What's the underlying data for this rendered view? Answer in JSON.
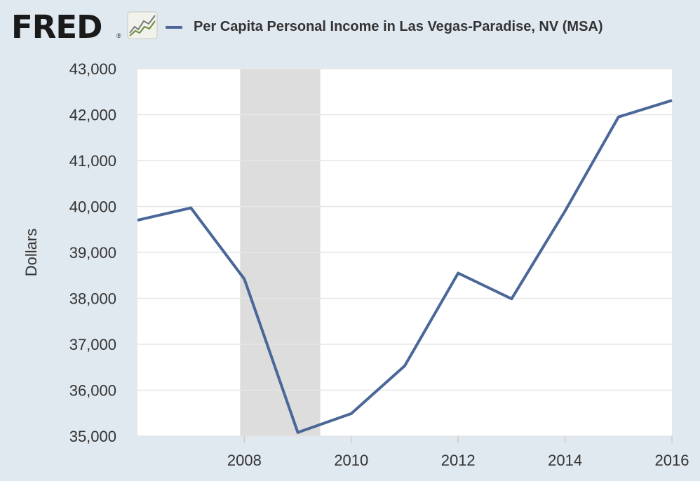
{
  "header": {
    "logo_text": "FRED",
    "logo_registered": "®",
    "logo_icon": "fred-chart-logo-icon",
    "legend_label": "Per Capita Personal Income in Las Vegas-Paradise, NV (MSA)"
  },
  "colors": {
    "background": "#e1e9f0",
    "plot_background": "#ffffff",
    "series_line": "#4a6798",
    "recession_band": "#dddddd",
    "gridline": "#e6e6e6"
  },
  "chart_data": {
    "type": "line",
    "title": "",
    "xlabel": "",
    "ylabel": "Dollars",
    "xlim": [
      2006,
      2016
    ],
    "ylim": [
      35000,
      43000
    ],
    "x_ticks": [
      2008,
      2010,
      2012,
      2014,
      2016
    ],
    "x_tick_labels": [
      "2008",
      "2010",
      "2012",
      "2014",
      "2016"
    ],
    "y_ticks": [
      35000,
      36000,
      37000,
      38000,
      39000,
      40000,
      41000,
      42000,
      43000
    ],
    "y_tick_labels": [
      "35,000",
      "36,000",
      "37,000",
      "38,000",
      "39,000",
      "40,000",
      "41,000",
      "42,000",
      "43,000"
    ],
    "grid": true,
    "legend": "top",
    "recession_shading": [
      {
        "start": 2007.92,
        "end": 2009.42
      }
    ],
    "series": [
      {
        "name": "Per Capita Personal Income in Las Vegas-Paradise, NV (MSA)",
        "x": [
          2006,
          2007,
          2008,
          2009,
          2010,
          2011,
          2012,
          2013,
          2014,
          2015,
          2016
        ],
        "y": [
          39700,
          39970,
          38420,
          35080,
          35490,
          36530,
          38550,
          37990,
          39900,
          41950,
          42310
        ]
      }
    ]
  }
}
